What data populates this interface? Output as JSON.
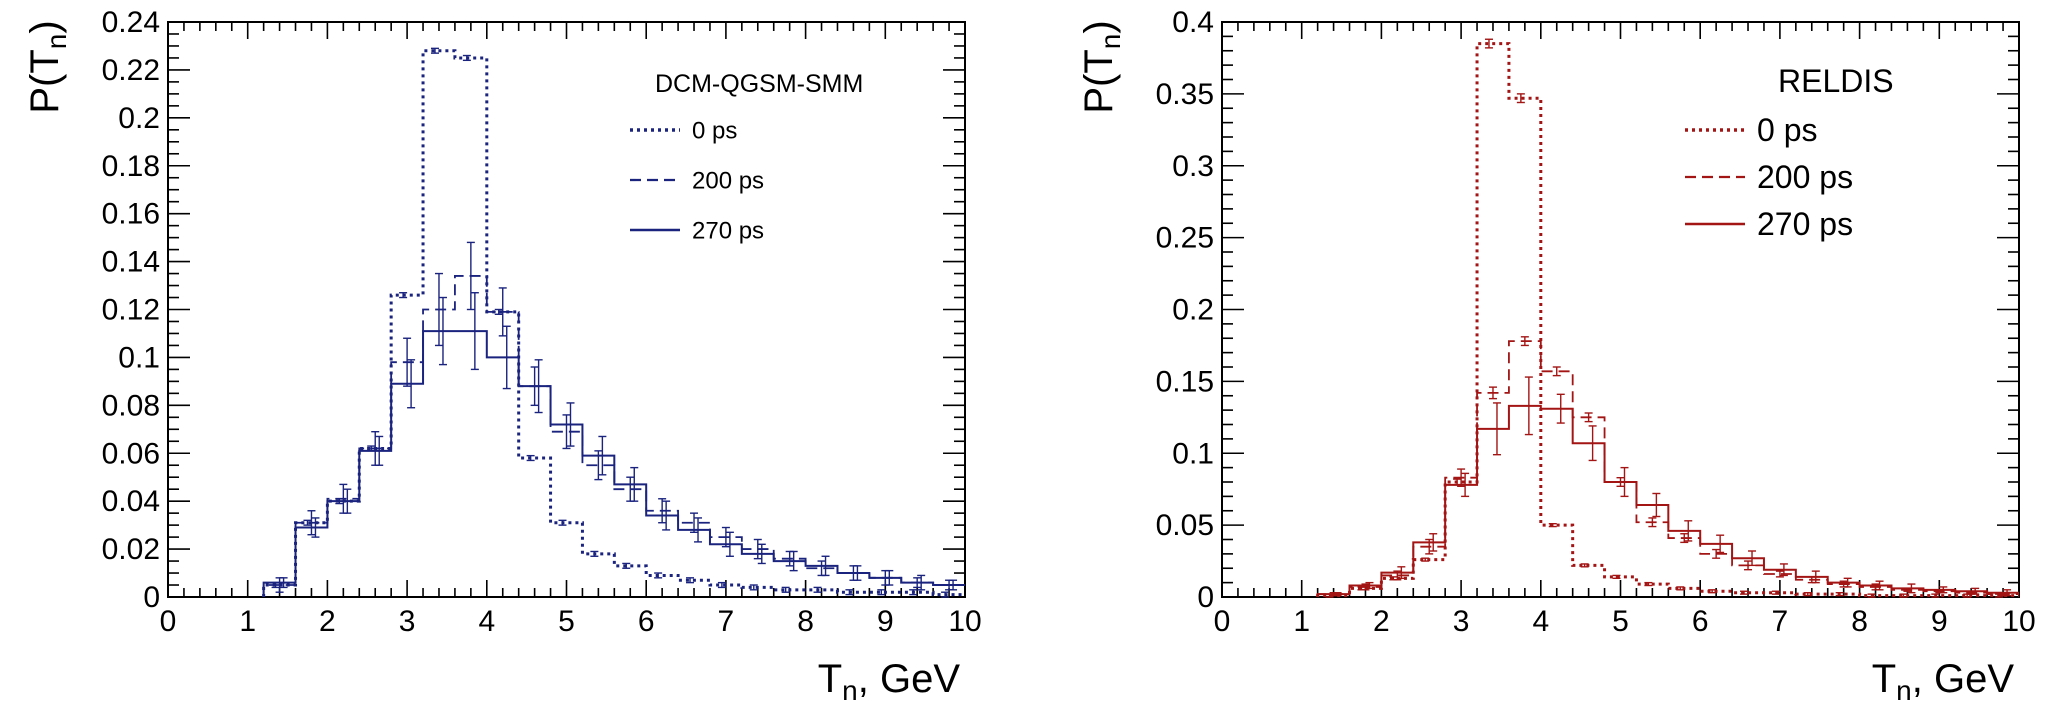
{
  "chart_data": [
    {
      "type": "line",
      "style": "step-histogram",
      "title": "DCM-QGSM-SMM",
      "xlabel": "T_n, GeV",
      "ylabel": "P(T_n)",
      "xlim": [
        0,
        10
      ],
      "ylim": [
        0,
        0.24
      ],
      "xticks": [
        "0",
        "1",
        "2",
        "3",
        "4",
        "5",
        "6",
        "7",
        "8",
        "9",
        "10"
      ],
      "yticks": [
        "0",
        "0.02",
        "0.04",
        "0.06",
        "0.08",
        "0.1",
        "0.12",
        "0.14",
        "0.16",
        "0.18",
        "0.2",
        "0.22",
        "0.24"
      ],
      "color": "#1a237e",
      "bin_edges": [
        1.2,
        1.6,
        2.0,
        2.4,
        2.8,
        3.2,
        3.6,
        4.0,
        4.4,
        4.8,
        5.2,
        5.6,
        6.0,
        6.4,
        6.8,
        7.2,
        7.6,
        8.0,
        8.4,
        8.8,
        9.2,
        9.6,
        10.0
      ],
      "series": [
        {
          "name": "0 ps",
          "line": "dotted",
          "values": [
            0.005,
            0.031,
            0.04,
            0.062,
            0.126,
            0.228,
            0.225,
            0.119,
            0.058,
            0.031,
            0.018,
            0.013,
            0.009,
            0.007,
            0.005,
            0.004,
            0.003,
            0.003,
            0.002,
            0.002,
            0.002,
            0.001
          ],
          "errors": [
            0.001,
            0.001,
            0.001,
            0.001,
            0.001,
            0.001,
            0.001,
            0.001,
            0.001,
            0.001,
            0.001,
            0.001,
            0.001,
            0.001,
            0.001,
            0.001,
            0.001,
            0.001,
            0.001,
            0.001,
            0.001,
            0.001
          ]
        },
        {
          "name": "200 ps",
          "line": "dashed",
          "values": [
            0.005,
            0.031,
            0.041,
            0.062,
            0.098,
            0.12,
            0.134,
            0.119,
            0.088,
            0.069,
            0.055,
            0.045,
            0.036,
            0.031,
            0.025,
            0.02,
            0.016,
            0.012,
            0.01,
            0.008,
            0.006,
            0.005
          ],
          "errors": [
            0.003,
            0.005,
            0.006,
            0.007,
            0.01,
            0.015,
            0.014,
            0.01,
            0.008,
            0.007,
            0.006,
            0.005,
            0.005,
            0.004,
            0.004,
            0.004,
            0.003,
            0.003,
            0.003,
            0.003,
            0.002,
            0.002
          ]
        },
        {
          "name": "270 ps",
          "line": "solid",
          "values": [
            0.006,
            0.029,
            0.04,
            0.061,
            0.089,
            0.111,
            0.111,
            0.1,
            0.088,
            0.072,
            0.059,
            0.047,
            0.034,
            0.028,
            0.022,
            0.018,
            0.015,
            0.013,
            0.01,
            0.008,
            0.006,
            0.005
          ],
          "errors": [
            0.002,
            0.004,
            0.005,
            0.006,
            0.01,
            0.014,
            0.016,
            0.013,
            0.011,
            0.009,
            0.008,
            0.007,
            0.006,
            0.005,
            0.005,
            0.004,
            0.004,
            0.004,
            0.003,
            0.003,
            0.003,
            0.002
          ]
        }
      ]
    },
    {
      "type": "line",
      "style": "step-histogram",
      "title": "RELDIS",
      "xlabel": "T_n, GeV",
      "ylabel": "P(T_n)",
      "xlim": [
        0,
        10
      ],
      "ylim": [
        0,
        0.4
      ],
      "xticks": [
        "0",
        "1",
        "2",
        "3",
        "4",
        "5",
        "6",
        "7",
        "8",
        "9",
        "10"
      ],
      "yticks": [
        "0",
        "0.05",
        "0.1",
        "0.15",
        "0.2",
        "0.25",
        "0.3",
        "0.35",
        "0.4"
      ],
      "color": "#a31515",
      "bin_edges": [
        1.2,
        1.6,
        2.0,
        2.4,
        2.8,
        3.2,
        3.6,
        4.0,
        4.4,
        4.8,
        5.2,
        5.6,
        6.0,
        6.4,
        6.8,
        7.2,
        7.6,
        8.0,
        8.4,
        8.8,
        9.2,
        9.6,
        10.0
      ],
      "series": [
        {
          "name": "0 ps",
          "line": "dotted",
          "values": [
            0.001,
            0.006,
            0.013,
            0.026,
            0.08,
            0.385,
            0.347,
            0.05,
            0.022,
            0.014,
            0.009,
            0.006,
            0.004,
            0.003,
            0.003,
            0.002,
            0.002,
            0.001,
            0.001,
            0.001,
            0.001,
            0.001
          ],
          "errors": [
            0.001,
            0.001,
            0.001,
            0.001,
            0.002,
            0.003,
            0.003,
            0.001,
            0.001,
            0.001,
            0.001,
            0.001,
            0.001,
            0.001,
            0.001,
            0.001,
            0.001,
            0.001,
            0.001,
            0.001,
            0.001,
            0.001
          ]
        },
        {
          "name": "200 ps",
          "line": "dashed",
          "values": [
            0.002,
            0.007,
            0.015,
            0.035,
            0.083,
            0.142,
            0.178,
            0.157,
            0.125,
            0.08,
            0.052,
            0.041,
            0.03,
            0.022,
            0.016,
            0.012,
            0.009,
            0.007,
            0.005,
            0.004,
            0.003,
            0.002
          ],
          "errors": [
            0.001,
            0.002,
            0.003,
            0.005,
            0.006,
            0.004,
            0.003,
            0.003,
            0.003,
            0.003,
            0.003,
            0.003,
            0.003,
            0.003,
            0.002,
            0.002,
            0.002,
            0.002,
            0.001,
            0.001,
            0.001,
            0.001
          ]
        },
        {
          "name": "270 ps",
          "line": "solid",
          "values": [
            0.002,
            0.008,
            0.017,
            0.038,
            0.078,
            0.117,
            0.133,
            0.131,
            0.107,
            0.08,
            0.064,
            0.046,
            0.037,
            0.027,
            0.019,
            0.014,
            0.01,
            0.008,
            0.006,
            0.005,
            0.004,
            0.003
          ],
          "errors": [
            0.001,
            0.002,
            0.004,
            0.006,
            0.008,
            0.018,
            0.02,
            0.01,
            0.012,
            0.01,
            0.008,
            0.007,
            0.006,
            0.005,
            0.004,
            0.004,
            0.003,
            0.003,
            0.003,
            0.002,
            0.002,
            0.002
          ]
        }
      ]
    }
  ]
}
